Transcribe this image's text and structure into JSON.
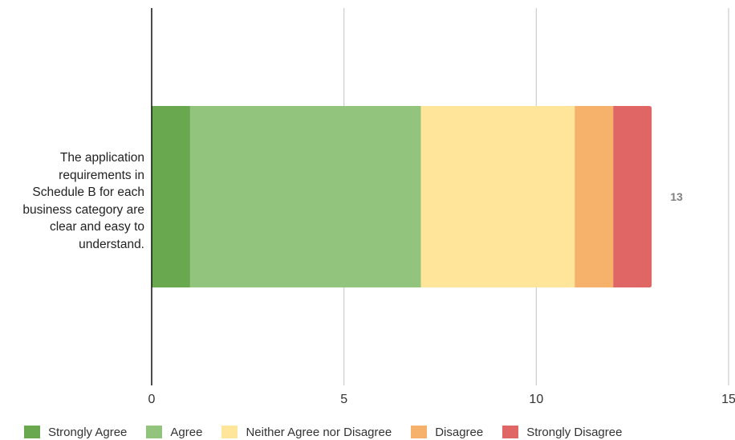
{
  "chart_data": {
    "type": "bar",
    "orientation": "horizontal",
    "stacked": true,
    "categories": [
      "The application requirements in Schedule B for each business category are clear and easy to understand."
    ],
    "series": [
      {
        "name": "Strongly Agree",
        "values": [
          1
        ],
        "color": "#6aa84f"
      },
      {
        "name": "Agree",
        "values": [
          6
        ],
        "color": "#93c47d"
      },
      {
        "name": "Neither Agree nor Disagree",
        "values": [
          4
        ],
        "color": "#ffe599"
      },
      {
        "name": "Disagree",
        "values": [
          1
        ],
        "color": "#f6b26b"
      },
      {
        "name": "Strongly Disagree",
        "values": [
          1
        ],
        "color": "#e06666"
      }
    ],
    "totals": [
      13
    ],
    "total_label_color": "#808080",
    "xlim": [
      0,
      15
    ],
    "x_ticks": [
      0,
      5,
      10,
      15
    ],
    "grid": true,
    "grid_color": "#cccccc",
    "axis_color": "#000000",
    "legend_position": "bottom",
    "title": "",
    "xlabel": "",
    "ylabel": ""
  }
}
